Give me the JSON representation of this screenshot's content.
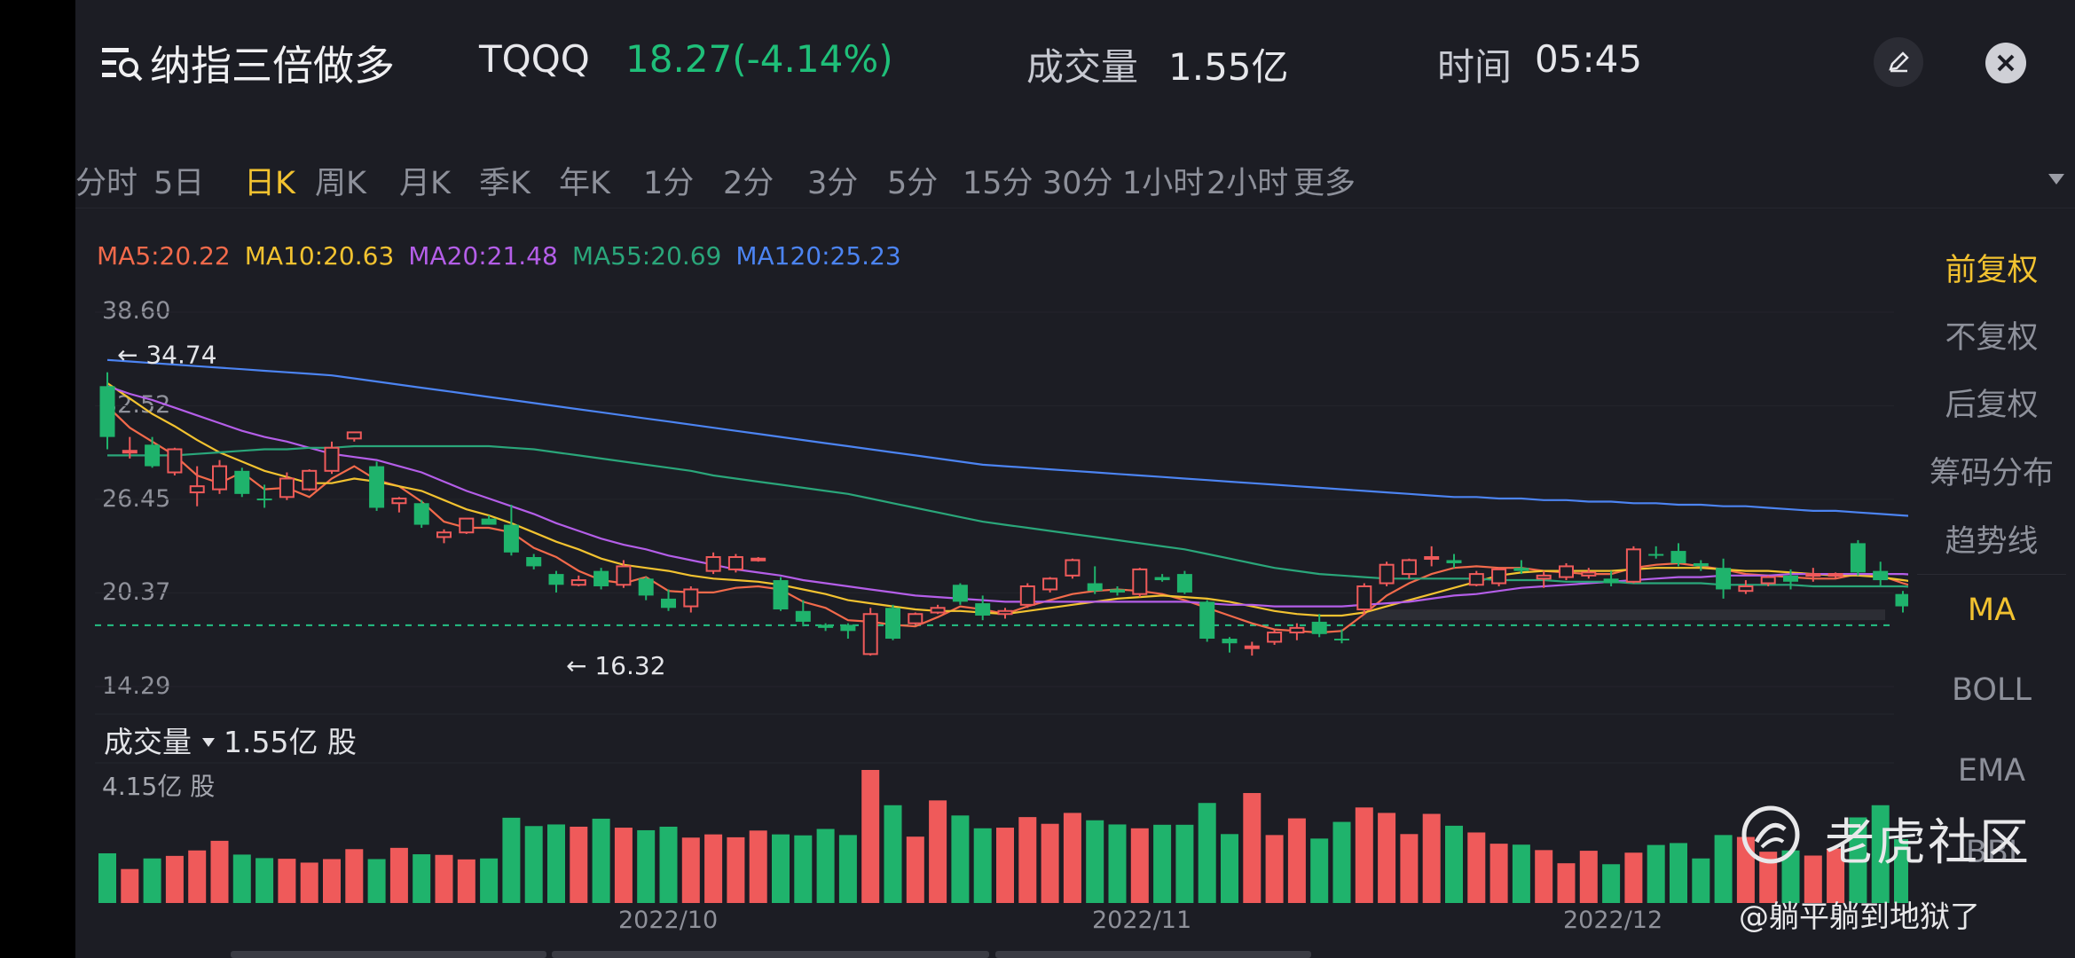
{
  "header": {
    "title": "纳指三倍做多",
    "ticker": "TQQQ",
    "price": "18.27(-4.14%)",
    "volume_label": "成交量",
    "volume_value": "1.55亿",
    "time_label": "时间",
    "time_value": "05:45"
  },
  "tabs": [
    "分时",
    "5日",
    "日K",
    "周K",
    "月K",
    "季K",
    "年K",
    "1分",
    "2分",
    "3分",
    "5分",
    "15分",
    "30分",
    "1小时",
    "2小时",
    "更多"
  ],
  "active_tab": "日K",
  "ma_legend": [
    {
      "text": "MA5:20.22",
      "color": "#f26a4b"
    },
    {
      "text": "MA10:20.63",
      "color": "#f2c230"
    },
    {
      "text": "MA20:21.48",
      "color": "#b45ee8"
    },
    {
      "text": "MA55:20.69",
      "color": "#2aa67a"
    },
    {
      "text": "MA120:25.23",
      "color": "#4c84f2"
    }
  ],
  "side_panel": {
    "items": [
      "前复权",
      "不复权",
      "后复权",
      "筹码分布",
      "趋势线",
      "MA",
      "BOLL",
      "EMA",
      "BBI"
    ],
    "active": [
      "前复权",
      "MA"
    ]
  },
  "volume": {
    "header": "成交量",
    "value": "1.55亿 股",
    "max_label": "4.15亿 股"
  },
  "colors": {
    "up": "#ef5a5a",
    "down": "#1fb36c",
    "accent": "#f2c230",
    "background": "#1c1d24"
  },
  "icons": [
    "menu-search-icon",
    "edit-icon",
    "close-icon",
    "caret-down-icon",
    "tiger-logo-icon"
  ],
  "watermark": {
    "brand": "老虎社区",
    "user": "@躺平躺到地狱了"
  },
  "chart_data": {
    "type": "candlestick",
    "ylim": [
      14.29,
      38.6
    ],
    "y_ticks": [
      "38.60",
      "32.52",
      "26.45",
      "20.37",
      "14.29"
    ],
    "x_labels": [
      "2022/10",
      "2022/11",
      "2022/12"
    ],
    "max_annotation": "34.74",
    "min_annotation": "16.32",
    "last_price_line": 18.27,
    "volume_max": 4.15,
    "volume_unit": "亿 股",
    "candles": [
      [
        33.8,
        34.7,
        29.7,
        30.5
      ],
      [
        29.6,
        30.5,
        29.1,
        29.6
      ],
      [
        30.0,
        30.5,
        28.5,
        28.6
      ],
      [
        28.2,
        29.8,
        28.0,
        29.7
      ],
      [
        26.9,
        28.6,
        26.0,
        27.3
      ],
      [
        27.1,
        29.0,
        26.8,
        28.6
      ],
      [
        28.3,
        28.5,
        26.6,
        26.8
      ],
      [
        26.5,
        27.4,
        25.9,
        26.4
      ],
      [
        26.6,
        28.2,
        26.4,
        27.8
      ],
      [
        27.1,
        28.4,
        27.0,
        28.3
      ],
      [
        28.3,
        30.2,
        28.1,
        29.8
      ],
      [
        30.4,
        30.8,
        30.2,
        30.8
      ],
      [
        28.6,
        28.9,
        25.7,
        25.9
      ],
      [
        26.2,
        26.6,
        25.6,
        26.5
      ],
      [
        26.2,
        26.4,
        24.6,
        24.8
      ],
      [
        24.0,
        24.5,
        23.6,
        24.3
      ],
      [
        24.3,
        25.2,
        24.2,
        25.2
      ],
      [
        25.2,
        25.4,
        24.8,
        24.8
      ],
      [
        24.8,
        26.1,
        22.8,
        23.0
      ],
      [
        22.7,
        22.9,
        21.9,
        22.1
      ],
      [
        21.6,
        21.8,
        20.4,
        20.9
      ],
      [
        20.9,
        21.5,
        20.8,
        21.2
      ],
      [
        21.8,
        22.0,
        20.6,
        20.8
      ],
      [
        20.9,
        22.5,
        20.7,
        22.1
      ],
      [
        21.3,
        21.4,
        19.9,
        20.2
      ],
      [
        20.0,
        20.6,
        19.2,
        19.4
      ],
      [
        19.5,
        20.8,
        19.1,
        20.6
      ],
      [
        21.8,
        23.0,
        21.6,
        22.7
      ],
      [
        21.9,
        22.9,
        21.7,
        22.7
      ],
      [
        22.6,
        22.7,
        22.4,
        22.6
      ],
      [
        21.2,
        21.4,
        19.2,
        19.3
      ],
      [
        19.2,
        19.9,
        18.2,
        18.5
      ],
      [
        18.3,
        18.4,
        17.9,
        18.1
      ],
      [
        18.3,
        18.4,
        17.4,
        17.9
      ],
      [
        16.4,
        19.4,
        16.3,
        19.0
      ],
      [
        19.4,
        19.6,
        17.3,
        17.4
      ],
      [
        18.4,
        19.1,
        18.3,
        19.0
      ],
      [
        19.1,
        19.6,
        19.0,
        19.4
      ],
      [
        20.9,
        21.0,
        19.6,
        19.8
      ],
      [
        19.7,
        20.2,
        18.6,
        18.9
      ],
      [
        19.0,
        19.4,
        18.7,
        19.2
      ],
      [
        19.6,
        21.0,
        19.4,
        20.8
      ],
      [
        20.6,
        21.4,
        20.4,
        21.3
      ],
      [
        21.5,
        22.6,
        21.3,
        22.5
      ],
      [
        21.0,
        22.1,
        20.3,
        20.5
      ],
      [
        20.6,
        20.8,
        20.2,
        20.4
      ],
      [
        20.3,
        22.0,
        20.1,
        21.9
      ],
      [
        21.4,
        21.6,
        21.1,
        21.2
      ],
      [
        21.6,
        21.8,
        20.3,
        20.4
      ],
      [
        19.8,
        19.9,
        17.2,
        17.4
      ],
      [
        17.4,
        17.5,
        16.5,
        17.1
      ],
      [
        16.9,
        17.2,
        16.3,
        16.9
      ],
      [
        17.2,
        18.0,
        17.0,
        17.8
      ],
      [
        17.8,
        18.4,
        17.3,
        18.1
      ],
      [
        18.5,
        19.0,
        17.5,
        17.7
      ],
      [
        17.4,
        18.0,
        17.1,
        17.3
      ],
      [
        19.3,
        21.0,
        19.0,
        20.8
      ],
      [
        21.0,
        22.4,
        20.8,
        22.2
      ],
      [
        21.6,
        22.6,
        21.3,
        22.5
      ],
      [
        22.6,
        23.4,
        22.1,
        22.7
      ],
      [
        22.5,
        22.9,
        22.0,
        22.3
      ],
      [
        20.9,
        21.8,
        20.8,
        21.6
      ],
      [
        21.0,
        22.0,
        20.8,
        21.9
      ],
      [
        22.0,
        22.5,
        21.6,
        21.8
      ],
      [
        21.3,
        21.8,
        20.7,
        21.5
      ],
      [
        21.4,
        22.3,
        21.2,
        22.1
      ],
      [
        21.5,
        22.0,
        21.3,
        21.7
      ],
      [
        21.3,
        21.8,
        20.8,
        21.0
      ],
      [
        21.1,
        23.4,
        21.0,
        23.2
      ],
      [
        22.9,
        23.4,
        22.6,
        22.8
      ],
      [
        23.1,
        23.6,
        22.1,
        22.3
      ],
      [
        22.3,
        22.5,
        21.8,
        22.1
      ],
      [
        22.0,
        22.6,
        20.0,
        20.6
      ],
      [
        20.5,
        21.2,
        20.3,
        20.8
      ],
      [
        21.0,
        21.5,
        20.8,
        21.4
      ],
      [
        21.5,
        21.9,
        20.6,
        21.1
      ],
      [
        21.5,
        22.0,
        21.1,
        21.6
      ],
      [
        21.5,
        21.7,
        21.3,
        21.6
      ],
      [
        23.6,
        23.8,
        21.5,
        21.7
      ],
      [
        21.8,
        22.4,
        20.8,
        21.2
      ],
      [
        20.3,
        20.5,
        19.1,
        19.5
      ],
      [
        19.6,
        19.8,
        19.0,
        19.1
      ],
      [
        18.8,
        18.9,
        18.1,
        18.3
      ]
    ],
    "ma_series": [
      {
        "name": "MA5",
        "color": "#f26a4b",
        "values": [
          32.5,
          31.1,
          30.2,
          29.3,
          28.0,
          27.5,
          28.2,
          27.1,
          27.2,
          26.6,
          27.8,
          28.6,
          27.7,
          27.3,
          26.3,
          25.0,
          24.6,
          24.6,
          24.3,
          23.3,
          22.7,
          21.8,
          21.2,
          21.0,
          21.4,
          20.5,
          20.4,
          20.4,
          20.7,
          20.8,
          20.6,
          19.8,
          19.4,
          18.6,
          18.5,
          18.3,
          18.2,
          18.8,
          19.5,
          19.3,
          19.0,
          19.5,
          19.9,
          20.3,
          20.5,
          20.6,
          20.5,
          20.3,
          19.9,
          19.4,
          18.9,
          18.4,
          18.0,
          17.9,
          17.8,
          17.9,
          19.0,
          20.2,
          21.0,
          21.6,
          22.0,
          22.1,
          22.0,
          22.0,
          21.8,
          21.7,
          21.6,
          21.6,
          22.0,
          22.2,
          22.3,
          22.1,
          21.9,
          21.6,
          21.5,
          21.4,
          21.3,
          21.3,
          21.6,
          21.5,
          21.0,
          20.6,
          20.22
        ]
      },
      {
        "name": "MA10",
        "color": "#f2c230",
        "values": [
          34.0,
          33.0,
          32.0,
          31.2,
          30.3,
          29.5,
          28.9,
          28.3,
          27.9,
          27.5,
          27.5,
          27.8,
          27.6,
          27.3,
          27.0,
          26.4,
          25.8,
          25.4,
          24.9,
          24.3,
          23.7,
          23.2,
          22.6,
          22.2,
          22.0,
          21.8,
          21.5,
          21.3,
          21.2,
          21.1,
          20.9,
          20.6,
          20.3,
          19.9,
          19.7,
          19.5,
          19.3,
          19.2,
          19.2,
          19.1,
          19.0,
          19.2,
          19.4,
          19.6,
          19.8,
          20.0,
          20.1,
          20.2,
          20.1,
          20.0,
          19.8,
          19.5,
          19.2,
          19.0,
          18.9,
          18.9,
          19.1,
          19.5,
          19.9,
          20.3,
          20.7,
          21.1,
          21.5,
          21.7,
          21.8,
          21.8,
          21.8,
          21.8,
          21.9,
          22.0,
          22.0,
          22.0,
          21.9,
          21.8,
          21.8,
          21.7,
          21.6,
          21.5,
          21.5,
          21.4,
          21.2,
          21.0,
          20.63
        ]
      },
      {
        "name": "MA20",
        "color": "#b45ee8",
        "values": [
          33.8,
          33.3,
          32.9,
          32.4,
          31.9,
          31.4,
          30.9,
          30.5,
          30.2,
          29.8,
          29.4,
          29.2,
          29.0,
          28.6,
          28.2,
          27.6,
          27.0,
          26.5,
          26.0,
          25.5,
          24.9,
          24.4,
          23.9,
          23.5,
          23.2,
          22.8,
          22.5,
          22.2,
          21.9,
          21.7,
          21.5,
          21.2,
          21.0,
          20.8,
          20.6,
          20.4,
          20.2,
          20.1,
          20.0,
          19.9,
          19.8,
          19.8,
          19.8,
          19.8,
          19.8,
          19.8,
          19.8,
          19.8,
          19.8,
          19.7,
          19.6,
          19.6,
          19.5,
          19.5,
          19.5,
          19.5,
          19.6,
          19.7,
          19.8,
          20.0,
          20.2,
          20.3,
          20.5,
          20.7,
          20.8,
          20.9,
          21.0,
          21.1,
          21.2,
          21.3,
          21.4,
          21.4,
          21.5,
          21.5,
          21.5,
          21.6,
          21.6,
          21.6,
          21.6,
          21.6,
          21.6,
          21.5,
          21.48
        ]
      },
      {
        "name": "MA55",
        "color": "#2aa67a",
        "values": [
          29.3,
          29.3,
          29.3,
          29.3,
          29.4,
          29.5,
          29.6,
          29.7,
          29.7,
          29.8,
          29.8,
          29.9,
          29.9,
          29.9,
          29.9,
          29.9,
          29.9,
          29.9,
          29.8,
          29.7,
          29.5,
          29.3,
          29.1,
          28.9,
          28.7,
          28.5,
          28.3,
          28.0,
          27.8,
          27.6,
          27.4,
          27.2,
          27.0,
          26.8,
          26.5,
          26.2,
          25.9,
          25.6,
          25.3,
          25.0,
          24.8,
          24.6,
          24.4,
          24.2,
          24.0,
          23.8,
          23.6,
          23.4,
          23.2,
          22.9,
          22.6,
          22.3,
          22.0,
          21.8,
          21.6,
          21.5,
          21.4,
          21.3,
          21.3,
          21.3,
          21.3,
          21.3,
          21.2,
          21.2,
          21.2,
          21.1,
          21.1,
          21.1,
          21.0,
          21.0,
          21.0,
          21.0,
          20.9,
          20.9,
          20.9,
          20.9,
          20.8,
          20.8,
          20.8,
          20.8,
          20.8,
          20.7,
          20.69
        ]
      },
      {
        "name": "MA120",
        "color": "#4c84f2",
        "values": [
          35.5,
          35.4,
          35.3,
          35.2,
          35.1,
          35.0,
          34.9,
          34.8,
          34.7,
          34.6,
          34.5,
          34.3,
          34.1,
          33.9,
          33.7,
          33.5,
          33.3,
          33.1,
          32.9,
          32.7,
          32.5,
          32.3,
          32.1,
          31.9,
          31.7,
          31.5,
          31.3,
          31.1,
          30.9,
          30.7,
          30.5,
          30.3,
          30.1,
          29.9,
          29.7,
          29.5,
          29.3,
          29.1,
          28.9,
          28.7,
          28.6,
          28.5,
          28.4,
          28.3,
          28.2,
          28.1,
          28.0,
          27.9,
          27.8,
          27.7,
          27.6,
          27.5,
          27.4,
          27.3,
          27.2,
          27.1,
          27.0,
          26.9,
          26.8,
          26.7,
          26.6,
          26.6,
          26.5,
          26.5,
          26.4,
          26.4,
          26.3,
          26.3,
          26.2,
          26.2,
          26.1,
          26.1,
          26.0,
          26.0,
          25.9,
          25.8,
          25.7,
          25.7,
          25.6,
          25.5,
          25.4,
          25.3,
          25.23
        ]
      }
    ],
    "volume_values": [
      1.55,
      1.06,
      1.39,
      1.47,
      1.64,
      1.94,
      1.51,
      1.4,
      1.38,
      1.26,
      1.37,
      1.68,
      1.37,
      1.72,
      1.52,
      1.5,
      1.36,
      1.39,
      2.66,
      2.4,
      2.45,
      2.38,
      2.63,
      2.35,
      2.27,
      2.38,
      2.04,
      2.14,
      2.05,
      2.26,
      2.14,
      2.11,
      2.31,
      2.12,
      4.15,
      3.05,
      2.07,
      3.2,
      2.73,
      2.33,
      2.35,
      2.68,
      2.47,
      2.81,
      2.58,
      2.45,
      2.33,
      2.44,
      2.44,
      3.12,
      2.15,
      3.43,
      2.12,
      2.64,
      2.01,
      2.53,
      2.98,
      2.81,
      2.15,
      2.78,
      2.41,
      2.2,
      1.85,
      1.82,
      1.65,
      1.24,
      1.63,
      1.21,
      1.57,
      1.81,
      1.87,
      1.39,
      2.12,
      2.06,
      1.6,
      1.64,
      1.48,
      1.7,
      2.67,
      3.05,
      1.99,
      2.15,
      1.55
    ]
  }
}
